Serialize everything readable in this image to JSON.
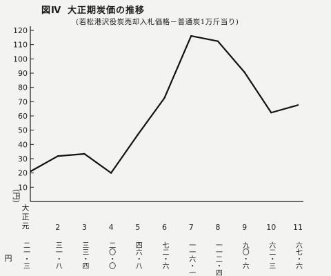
{
  "figure_label": "図Ⅳ",
  "title": "大正期炭価の推移",
  "subtitle": "(若松港沢役炭売却入札価格－普通炭1万斤当り)",
  "chart_data": {
    "type": "line",
    "ylabel": "(円)",
    "ylim": [
      0,
      120
    ],
    "yticks": [
      "120",
      "110",
      "100",
      "90",
      "80",
      "70",
      "60",
      "50",
      "40",
      "30",
      "20",
      "10"
    ],
    "x_era_label": "大正元",
    "categories": [
      "元",
      "2",
      "3",
      "4",
      "5",
      "6",
      "7",
      "8",
      "9",
      "10",
      "11"
    ],
    "values": [
      21.3,
      31.8,
      33.4,
      20.0,
      46.8,
      72.6,
      116.1,
      112.4,
      90.6,
      62.3,
      67.6
    ],
    "price_labels": [
      "二一・三",
      "三一・八",
      "三三・四",
      "二〇・〇",
      "四六・八",
      "七二・六",
      "一一六・一",
      "一一二・四",
      "九〇・六",
      "六二・三",
      "六七・六"
    ],
    "price_unit": "円",
    "colors": {
      "line": "#111111",
      "axis": "#1a1a1a"
    }
  }
}
